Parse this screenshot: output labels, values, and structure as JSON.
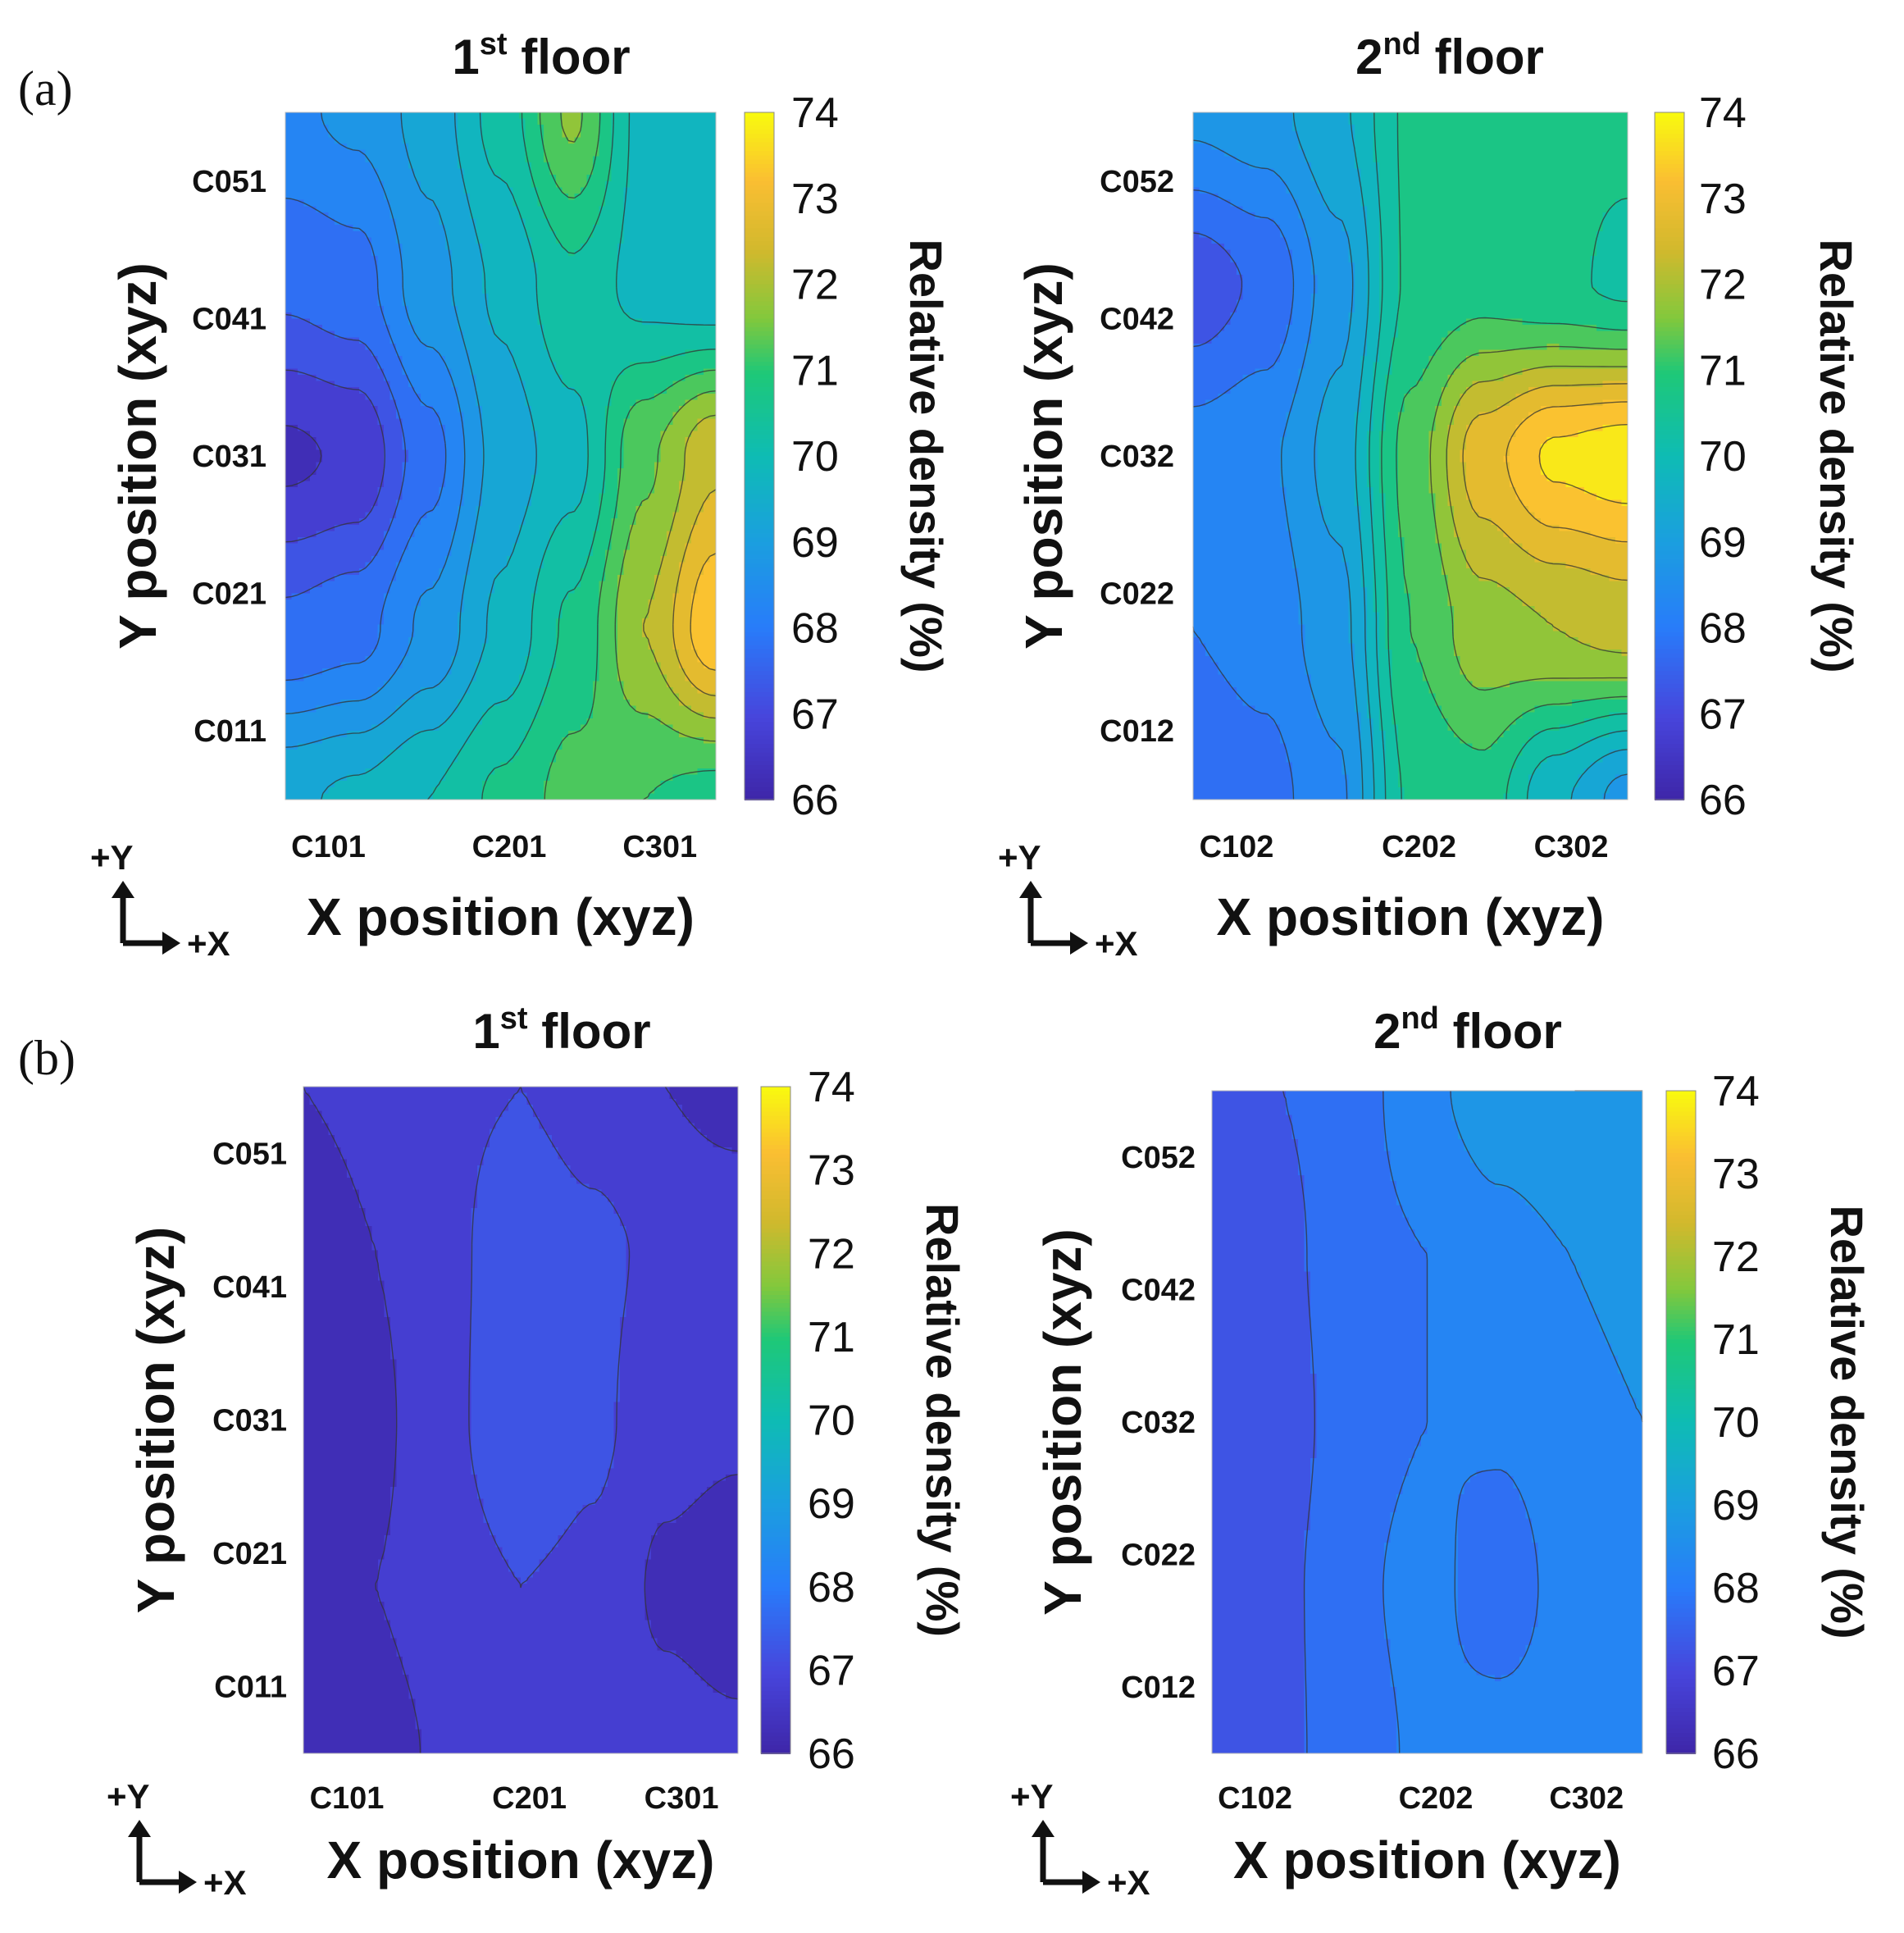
{
  "panels": [
    {
      "id": "a",
      "label": "(a)"
    },
    {
      "id": "b",
      "label": "(b)"
    }
  ],
  "chart_data": [
    {
      "type": "heatmap",
      "panel": "(a)",
      "title": "1st floor",
      "title_main": "1",
      "title_sup": "st",
      "title_rest": " floor",
      "xlabel": "X position (xyz)",
      "ylabel": "Y position (xyz)",
      "colorbar_label": "Relative density (%)",
      "x_ticks": [
        "C101",
        "C201",
        "C301"
      ],
      "y_ticks": [
        "C011",
        "C021",
        "C031",
        "C041",
        "C051"
      ],
      "clim": [
        66,
        74
      ],
      "colorbar_ticks": [
        66,
        67,
        68,
        69,
        70,
        71,
        72,
        73,
        74
      ],
      "colormap": "parula",
      "contour_lines": true,
      "z": [
        [
          69.4,
          69.6,
          70.0,
          70.6,
          71.2,
          71.0,
          70.8
        ],
        [
          67.6,
          67.8,
          68.6,
          69.6,
          70.6,
          72.0,
          73.4
        ],
        [
          66.4,
          66.6,
          67.8,
          69.2,
          69.8,
          71.4,
          72.4
        ],
        [
          67.6,
          67.8,
          68.8,
          69.6,
          70.4,
          69.8,
          69.6
        ],
        [
          68.4,
          68.6,
          69.2,
          70.2,
          71.6,
          69.8,
          69.6
        ]
      ]
    },
    {
      "type": "heatmap",
      "panel": "(a)",
      "title": "2nd floor",
      "title_main": "2",
      "title_sup": "nd",
      "title_rest": " floor",
      "xlabel": "X position (xyz)",
      "ylabel": "Y position (xyz)",
      "colorbar_label": "Relative density (%)",
      "x_ticks": [
        "C102",
        "C202",
        "C302"
      ],
      "y_ticks": [
        "C012",
        "C022",
        "C032",
        "C042",
        "C052"
      ],
      "clim": [
        66,
        74
      ],
      "colorbar_ticks": [
        66,
        67,
        68,
        69,
        70,
        71,
        72,
        73,
        74
      ],
      "colormap": "parula",
      "contour_lines": true,
      "z": [
        [
          67.6,
          67.8,
          68.4,
          70.6,
          70.8,
          69.6,
          68.8
        ],
        [
          68.0,
          68.2,
          68.8,
          71.0,
          71.8,
          72.0,
          72.2
        ],
        [
          68.2,
          68.4,
          69.2,
          71.2,
          72.8,
          73.6,
          73.8
        ],
        [
          67.2,
          67.6,
          68.8,
          70.6,
          70.8,
          70.6,
          70.4
        ],
        [
          68.6,
          68.8,
          69.4,
          70.6,
          70.6,
          70.6,
          70.6
        ]
      ]
    },
    {
      "type": "heatmap",
      "panel": "(b)",
      "title": "1st floor",
      "title_main": "1",
      "title_sup": "st",
      "title_rest": " floor",
      "xlabel": "X position (xyz)",
      "ylabel": "Y position (xyz)",
      "colorbar_label": "Relative density (%)",
      "x_ticks": [
        "C101",
        "C201",
        "C301"
      ],
      "y_ticks": [
        "C011",
        "C021",
        "C031",
        "C041",
        "C051"
      ],
      "clim": [
        66,
        74
      ],
      "colorbar_ticks": [
        66,
        67,
        68,
        69,
        70,
        71,
        72,
        73,
        74
      ],
      "colormap": "parula",
      "contour_lines": true,
      "z": [
        [
          66.1,
          66.3,
          66.6,
          66.8,
          66.8,
          66.7,
          66.6
        ],
        [
          66.4,
          66.5,
          66.8,
          67.0,
          66.9,
          66.4,
          66.2
        ],
        [
          66.2,
          66.4,
          66.9,
          67.4,
          67.1,
          66.7,
          66.6
        ],
        [
          66.3,
          66.5,
          66.9,
          67.3,
          67.1,
          66.9,
          66.9
        ],
        [
          66.5,
          66.6,
          66.9,
          67.0,
          66.8,
          66.5,
          66.3
        ]
      ]
    },
    {
      "type": "heatmap",
      "panel": "(b)",
      "title": "2nd floor",
      "title_main": "2",
      "title_sup": "nd",
      "title_rest": " floor",
      "xlabel": "X position (xyz)",
      "ylabel": "Y position (xyz)",
      "colorbar_label": "Relative density (%)",
      "x_ticks": [
        "C102",
        "C202",
        "C302"
      ],
      "y_ticks": [
        "C012",
        "C022",
        "C032",
        "C042",
        "C052"
      ],
      "clim": [
        66,
        74
      ],
      "colorbar_ticks": [
        66,
        67,
        68,
        69,
        70,
        71,
        72,
        73,
        74
      ],
      "colormap": "parula",
      "contour_lines": true,
      "z": [
        [
          67.3,
          67.4,
          67.8,
          68.1,
          68.3,
          68.4,
          68.5
        ],
        [
          67.3,
          67.4,
          67.9,
          68.2,
          67.6,
          68.3,
          68.4
        ],
        [
          67.2,
          67.3,
          67.8,
          68.0,
          68.1,
          68.4,
          68.5
        ],
        [
          67.3,
          67.4,
          67.8,
          68.0,
          68.3,
          68.5,
          68.6
        ],
        [
          67.4,
          67.5,
          67.8,
          68.4,
          68.8,
          69.0,
          69.0
        ]
      ]
    }
  ],
  "direction_indicator": {
    "y_label": "+Y",
    "x_label": "+X"
  }
}
